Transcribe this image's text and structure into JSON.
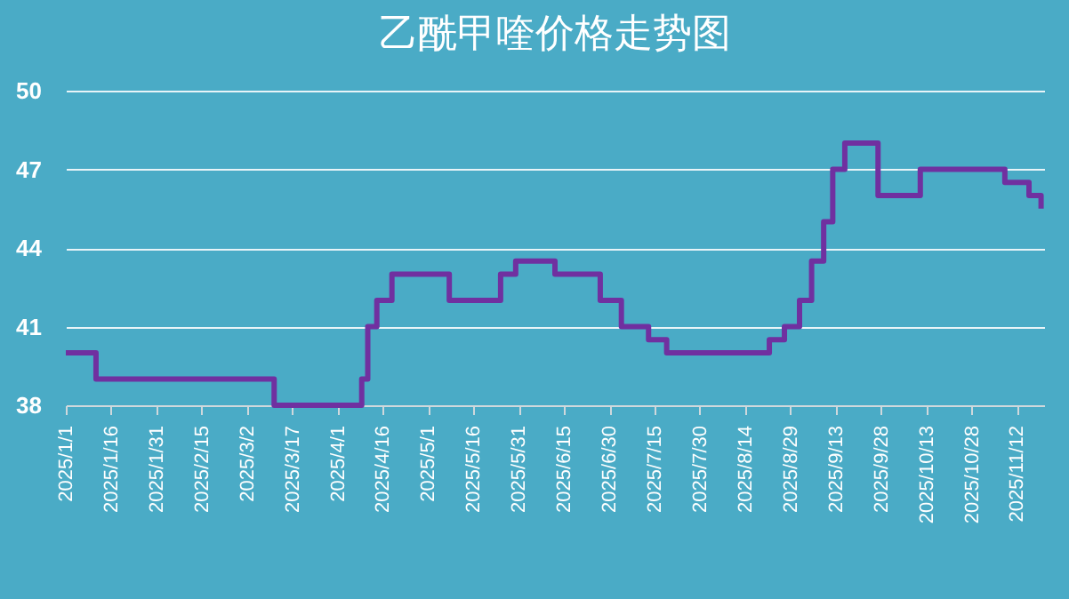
{
  "chart_data": {
    "type": "step",
    "title": "乙酰甲喹价格走势图",
    "x": [
      "2025-01-01",
      "2025-01-11",
      "2025-03-11",
      "2025-04-09",
      "2025-04-11",
      "2025-04-14",
      "2025-04-19",
      "2025-05-08",
      "2025-05-25",
      "2025-05-30",
      "2025-06-12",
      "2025-06-27",
      "2025-07-04",
      "2025-07-13",
      "2025-07-19",
      "2025-08-22",
      "2025-08-27",
      "2025-09-01",
      "2025-09-05",
      "2025-09-09",
      "2025-09-12",
      "2025-09-16",
      "2025-09-27",
      "2025-10-11",
      "2025-11-08",
      "2025-11-16",
      "2025-11-20"
    ],
    "series": [
      {
        "color": "#7030a0",
        "values": [
          40,
          39,
          38,
          39,
          41,
          42,
          43,
          42,
          43,
          43.5,
          43,
          42,
          41,
          40.5,
          40,
          40.5,
          41,
          42,
          43.5,
          45,
          47,
          48,
          46,
          47,
          46.5,
          46,
          45.5
        ]
      }
    ],
    "xlim": [
      "2025-01-01",
      "2025-11-21"
    ],
    "xticks": [
      {
        "value": "2025-01-01",
        "label": "2025/1/1"
      },
      {
        "value": "2025-01-16",
        "label": "2025/1/16"
      },
      {
        "value": "2025-01-31",
        "label": "2025/1/31"
      },
      {
        "value": "2025-02-15",
        "label": "2025/2/15"
      },
      {
        "value": "2025-03-02",
        "label": "2025/3/2"
      },
      {
        "value": "2025-03-17",
        "label": "2025/3/17"
      },
      {
        "value": "2025-04-01",
        "label": "2025/4/1"
      },
      {
        "value": "2025-04-16",
        "label": "2025/4/16"
      },
      {
        "value": "2025-05-01",
        "label": "2025/5/1"
      },
      {
        "value": "2025-05-16",
        "label": "2025/5/16"
      },
      {
        "value": "2025-05-31",
        "label": "2025/5/31"
      },
      {
        "value": "2025-06-15",
        "label": "2025/6/15"
      },
      {
        "value": "2025-06-30",
        "label": "2025/6/30"
      },
      {
        "value": "2025-07-15",
        "label": "2025/7/15"
      },
      {
        "value": "2025-07-30",
        "label": "2025/7/30"
      },
      {
        "value": "2025-08-14",
        "label": "2025/8/14"
      },
      {
        "value": "2025-08-29",
        "label": "2025/8/29"
      },
      {
        "value": "2025-09-13",
        "label": "2025/9/13"
      },
      {
        "value": "2025-09-28",
        "label": "2025/9/28"
      },
      {
        "value": "2025-10-13",
        "label": "2025/10/13"
      },
      {
        "value": "2025-10-28",
        "label": "2025/10/28"
      },
      {
        "value": "2025-11-12",
        "label": "2025/11/12"
      }
    ],
    "ylim": [
      38,
      50
    ],
    "yticks": [
      38,
      41,
      44,
      47,
      50
    ],
    "grid": "y",
    "legend": false,
    "line_style": "solid",
    "marker": "none"
  }
}
